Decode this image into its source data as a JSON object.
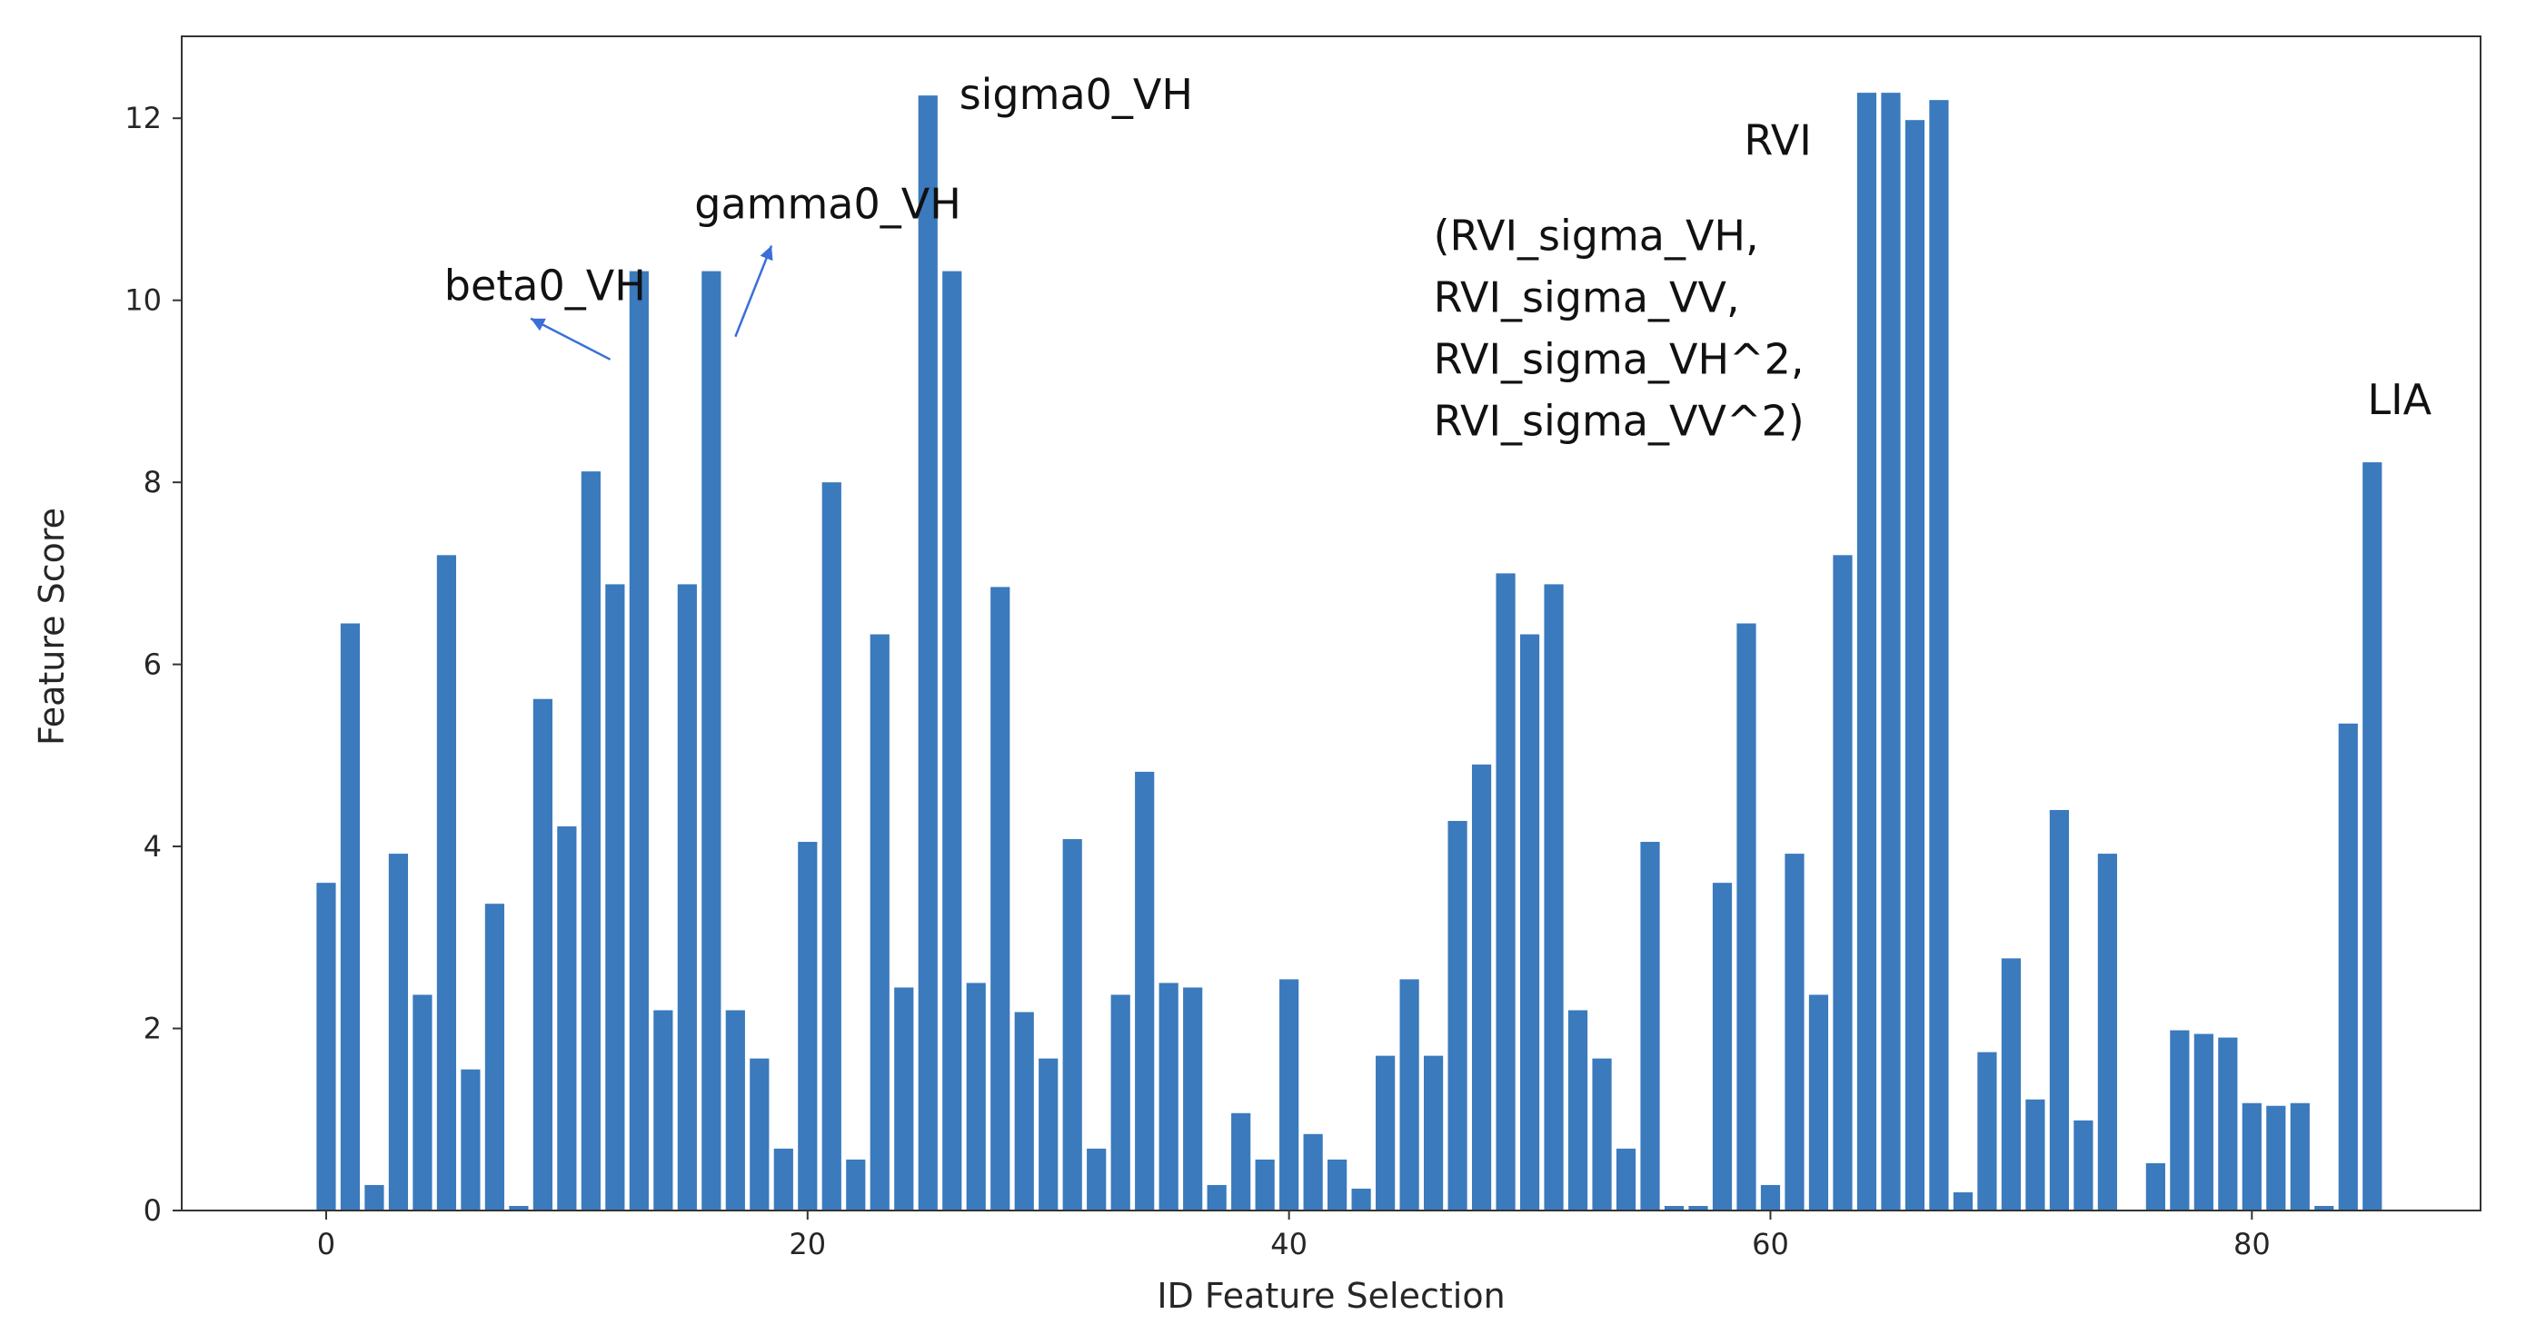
{
  "chart_data": {
    "type": "bar",
    "xlabel": "ID Feature Selection",
    "ylabel": "Feature Score",
    "xlim": [
      -6,
      89.5
    ],
    "ylim": [
      0,
      12.9
    ],
    "xticks": [
      0,
      20,
      40,
      60,
      80
    ],
    "yticks": [
      0,
      2,
      4,
      6,
      8,
      10,
      12
    ],
    "bar_color": "#3a7abd",
    "x": [
      0,
      1,
      2,
      3,
      4,
      5,
      6,
      7,
      8,
      9,
      10,
      11,
      12,
      13,
      14,
      15,
      16,
      17,
      18,
      19,
      20,
      21,
      22,
      23,
      24,
      25,
      26,
      27,
      28,
      29,
      30,
      31,
      32,
      33,
      34,
      35,
      36,
      37,
      38,
      39,
      40,
      41,
      42,
      43,
      44,
      45,
      46,
      47,
      48,
      49,
      50,
      51,
      52,
      53,
      54,
      55,
      56,
      57,
      58,
      59,
      60,
      61,
      62,
      63,
      64,
      65,
      66,
      67,
      68,
      69,
      70,
      71,
      72,
      73,
      74,
      75,
      76,
      77,
      78,
      79,
      80,
      81,
      82,
      83,
      84,
      85
    ],
    "values": [
      3.6,
      6.45,
      0.28,
      3.92,
      2.37,
      7.2,
      1.55,
      3.37,
      0.05,
      5.62,
      4.22,
      8.12,
      6.88,
      10.32,
      2.2,
      6.88,
      10.32,
      2.2,
      1.67,
      0.68,
      4.05,
      8.0,
      0.56,
      6.33,
      2.45,
      12.25,
      10.32,
      2.5,
      6.85,
      2.18,
      1.67,
      4.08,
      0.68,
      2.37,
      4.82,
      2.5,
      2.45,
      0.28,
      1.07,
      0.56,
      2.54,
      0.84,
      0.56,
      0.24,
      1.7,
      2.54,
      1.7,
      4.28,
      4.9,
      7.0,
      6.33,
      6.88,
      2.2,
      1.67,
      0.68,
      4.05,
      0.05,
      0.05,
      3.6,
      6.45,
      0.28,
      3.92,
      2.37,
      7.2,
      12.28,
      12.28,
      11.98,
      12.2,
      0.2,
      1.74,
      2.77,
      1.22,
      4.4,
      0.99,
      3.92,
      0.0,
      0.52,
      1.98,
      1.94,
      1.9,
      1.18,
      1.15,
      1.18,
      0.05,
      5.35,
      8.22
    ],
    "annotations": [
      {
        "id": "beta0_vh",
        "text": "beta0_VH",
        "lines": [
          "beta0_VH"
        ],
        "x": 4.9,
        "y": 10.0
      },
      {
        "id": "gamma0_vh",
        "text": "gamma0_VH",
        "lines": [
          "gamma0_VH"
        ],
        "x": 15.3,
        "y": 10.9
      },
      {
        "id": "sigma0_vh",
        "text": "sigma0_VH",
        "lines": [
          "sigma0_VH"
        ],
        "x": 26.3,
        "y": 12.1
      },
      {
        "id": "rvi",
        "text": "RVI",
        "lines": [
          "RVI"
        ],
        "x": 58.9,
        "y": 11.6
      },
      {
        "id": "rvi_list",
        "text": "(RVI_sigma_VH, RVI_sigma_VV, RVI_sigma_VH^2, RVI_sigma_VV^2)",
        "lines": [
          "(RVI_sigma_VH,",
          "RVI_sigma_VV,",
          "RVI_sigma_VH^2,",
          "RVI_sigma_VV^2)"
        ],
        "x": 46.0,
        "y": 10.55
      },
      {
        "id": "lia",
        "text": "LIA",
        "lines": [
          "LIA"
        ],
        "x": 84.8,
        "y": 8.75
      }
    ],
    "arrows": [
      {
        "name": "beta0-arrow",
        "from": [
          11.8,
          9.35
        ],
        "to": [
          8.5,
          9.8
        ]
      },
      {
        "name": "gamma0-arrow",
        "from": [
          17.0,
          9.6
        ],
        "to": [
          18.5,
          10.6
        ]
      }
    ]
  }
}
